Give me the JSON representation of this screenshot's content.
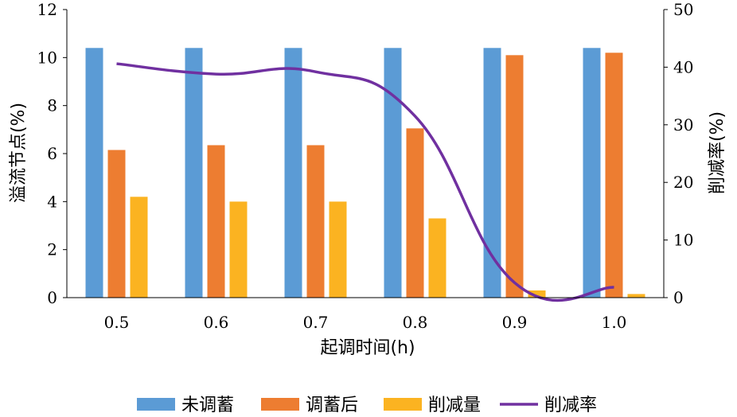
{
  "chart_data": {
    "type": "bar",
    "xlabel": "起调时间(h)",
    "ylabel": "溢流节点(%)",
    "y2label": "削减率(%)",
    "categories": [
      "0.5",
      "0.6",
      "0.7",
      "0.8",
      "0.9",
      "1.0"
    ],
    "ylim": [
      0,
      12
    ],
    "yticks": [
      "0",
      "2",
      "4",
      "6",
      "8",
      "10",
      "12"
    ],
    "y2lim": [
      0,
      50
    ],
    "y2ticks": [
      "0",
      "10",
      "20",
      "30",
      "40",
      "50"
    ],
    "grid": false,
    "legend_position": "bottom",
    "series": [
      {
        "name": "未调蓄",
        "type": "bar",
        "axis": "left",
        "color": "#5B9BD5",
        "values": [
          10.4,
          10.4,
          10.4,
          10.4,
          10.4,
          10.4
        ]
      },
      {
        "name": "调蓄后",
        "type": "bar",
        "axis": "left",
        "color": "#ED7D31",
        "values": [
          6.15,
          6.35,
          6.35,
          7.05,
          10.1,
          10.2
        ]
      },
      {
        "name": "削减量",
        "type": "bar",
        "axis": "left",
        "color": "#FBB321",
        "values": [
          4.2,
          4.0,
          4.0,
          3.3,
          0.3,
          0.15
        ]
      },
      {
        "name": "削减率",
        "type": "line",
        "axis": "right",
        "color": "#7030A0",
        "values": [
          40.6,
          38.8,
          39.2,
          31.5,
          2.6,
          1.8
        ]
      }
    ]
  }
}
